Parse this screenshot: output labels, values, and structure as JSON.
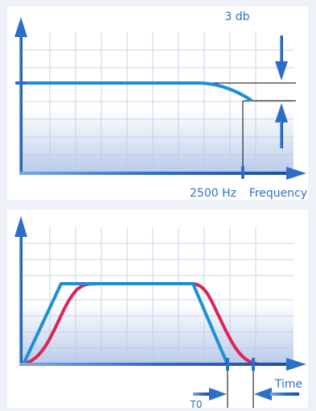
{
  "top_panel": {
    "level_label": "3 db",
    "cutoff_label": "2500 Hz",
    "axis_label": "Frequency"
  },
  "bottom_panel": {
    "axis_label": "Time",
    "delay_label": "T0"
  },
  "colors": {
    "background": "#eef1f5",
    "panel": "#ffffff",
    "grid": "#b9c8e6",
    "axis": "#2e6ec8",
    "blue_curve": "#1e8fd6",
    "red_curve": "#d8255a",
    "marker": "#000000"
  }
}
